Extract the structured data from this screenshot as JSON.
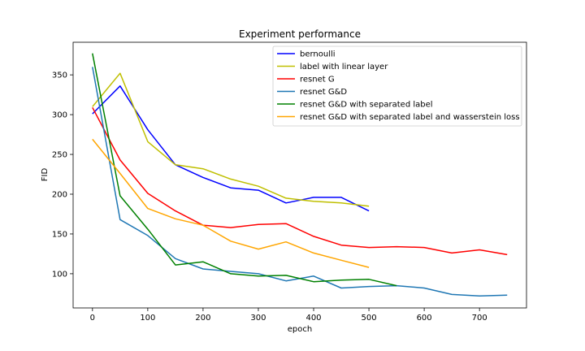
{
  "chart_data": {
    "type": "line",
    "title": "Experiment performance",
    "xlabel": "epoch",
    "ylabel": "FID",
    "xlim": [
      -35,
      785
    ],
    "ylim": [
      57,
      391
    ],
    "xticks": [
      0,
      100,
      200,
      300,
      400,
      500,
      600,
      700
    ],
    "yticks": [
      100,
      150,
      200,
      250,
      300,
      350
    ],
    "grid": false,
    "legend_position": "top-right",
    "series": [
      {
        "name": "bernoulli",
        "color": "#0000ff",
        "x": [
          0,
          50,
          100,
          150,
          200,
          250,
          300,
          350,
          400,
          450,
          500
        ],
        "y": [
          301,
          336,
          281,
          237,
          221,
          208,
          205,
          189,
          196,
          196,
          179
        ]
      },
      {
        "name": "label with linear layer",
        "color": "#bfbf00",
        "x": [
          0,
          50,
          100,
          150,
          200,
          250,
          300,
          350,
          400,
          450,
          500
        ],
        "y": [
          310,
          352,
          266,
          237,
          232,
          219,
          210,
          195,
          191,
          189,
          185
        ]
      },
      {
        "name": "resnet G",
        "color": "#ff0000",
        "x": [
          0,
          50,
          100,
          150,
          200,
          250,
          300,
          350,
          400,
          450,
          500,
          550,
          600,
          650,
          700,
          750
        ],
        "y": [
          309,
          243,
          201,
          179,
          161,
          158,
          162,
          163,
          147,
          136,
          133,
          134,
          133,
          126,
          130,
          124
        ]
      },
      {
        "name": "resnet G&D",
        "color": "#1f77b4",
        "x": [
          0,
          50,
          100,
          150,
          200,
          250,
          300,
          350,
          400,
          450,
          500,
          550,
          600,
          650,
          700,
          750
        ],
        "y": [
          360,
          168,
          148,
          119,
          106,
          103,
          100,
          91,
          97,
          82,
          84,
          85,
          82,
          74,
          72,
          73
        ]
      },
      {
        "name": "resnet G&D with separated label",
        "color": "#008000",
        "x": [
          0,
          50,
          100,
          150,
          200,
          250,
          300,
          350,
          400,
          450,
          500,
          550
        ],
        "y": [
          377,
          198,
          156,
          111,
          115,
          100,
          97,
          98,
          90,
          92,
          93,
          85
        ]
      },
      {
        "name": "resnet G&D with separated label and wasserstein loss",
        "color": "#ffa500",
        "x": [
          0,
          50,
          100,
          150,
          200,
          250,
          300,
          350,
          400,
          450,
          500
        ],
        "y": [
          269,
          226,
          182,
          169,
          161,
          141,
          131,
          140,
          126,
          117,
          108
        ]
      }
    ]
  }
}
